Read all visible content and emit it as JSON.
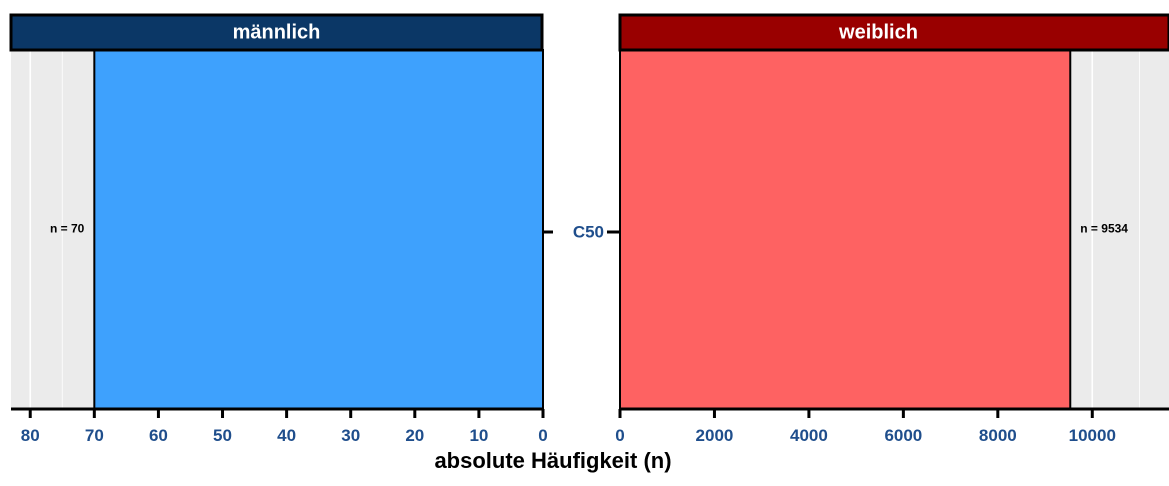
{
  "chart_data": {
    "type": "bar",
    "orientation": "horizontal",
    "layout": "pyramid",
    "category": "C50",
    "xlabel": "absolute Häufigkeit (n)",
    "panels": [
      {
        "name": "männlich",
        "strip_color": "#0b3766",
        "bar_color": "#3ea1fd",
        "value": 70,
        "bar_label": "n = 70",
        "reversed": true,
        "xlim": [
          0,
          83
        ],
        "ticks": [
          80,
          70,
          60,
          50,
          40,
          30,
          20,
          10,
          0
        ],
        "tick_labels": [
          "80",
          "70",
          "60",
          "50",
          "40",
          "30",
          "20",
          "10",
          "0"
        ]
      },
      {
        "name": "weiblich",
        "strip_color": "#990000",
        "bar_color": "#fe6262",
        "value": 9534,
        "bar_label": "n = 9534",
        "reversed": false,
        "xlim": [
          0,
          11434
        ],
        "ticks": [
          0,
          2000,
          4000,
          6000,
          8000,
          10000
        ],
        "tick_labels": [
          "0",
          "2000",
          "4000",
          "6000",
          "8000",
          "10000"
        ]
      }
    ],
    "grid": true,
    "legend": "none"
  },
  "colors": {
    "panel_background": "#ebebeb",
    "grid_line": "#ffffff",
    "tick_label": "#1f4e8c"
  }
}
